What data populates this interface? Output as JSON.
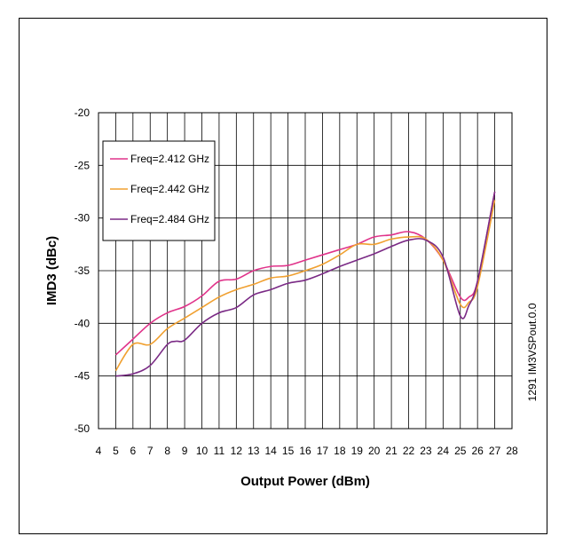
{
  "chart_data": {
    "type": "line",
    "title": "",
    "xlabel": "Output Power (dBm)",
    "ylabel": "IMD3 (dBc)",
    "side_note": "1291 IM3VSPout.0.0",
    "xlim": [
      4,
      28
    ],
    "ylim": [
      -50,
      -20
    ],
    "x_ticks": [
      "4",
      "5",
      "6",
      "7",
      "8",
      "9",
      "10",
      "11",
      "12",
      "13",
      "14",
      "15",
      "16",
      "17",
      "18",
      "19",
      "20",
      "21",
      "22",
      "23",
      "24",
      "25",
      "26",
      "27",
      "28"
    ],
    "y_ticks": [
      "-20",
      "-25",
      "-30",
      "-35",
      "-40",
      "-45",
      "-50"
    ],
    "grid": "vertical lines every 1 dBm, horizontal lines every 5 dBc",
    "legend_position": "top-left",
    "series": [
      {
        "name": "Freq=2.412 GHz",
        "color": "#e0338a",
        "x": [
          5,
          6,
          7,
          8,
          9,
          10,
          11,
          12,
          13,
          14,
          15,
          16,
          17,
          18,
          19,
          20,
          21,
          22,
          23,
          24,
          25,
          25.5,
          26,
          27
        ],
        "y": [
          -43,
          -41.5,
          -40,
          -39,
          -38.4,
          -37.4,
          -36,
          -35.8,
          -35,
          -34.6,
          -34.5,
          -34,
          -33.5,
          -33,
          -32.5,
          -31.8,
          -31.6,
          -31.3,
          -32,
          -34,
          -37.5,
          -37.5,
          -36,
          -27.5
        ]
      },
      {
        "name": "Freq=2.442 GHz",
        "color": "#f0a030",
        "x": [
          5,
          6,
          7,
          8,
          9,
          10,
          11,
          12,
          13,
          14,
          15,
          16,
          17,
          18,
          19,
          20,
          21,
          22,
          23,
          24,
          25,
          25.5,
          26,
          27
        ],
        "y": [
          -44.5,
          -42,
          -42,
          -40.5,
          -39.5,
          -38.5,
          -37.5,
          -36.8,
          -36.3,
          -35.7,
          -35.5,
          -35,
          -34.4,
          -33.5,
          -32.5,
          -32.5,
          -32,
          -31.8,
          -32,
          -34,
          -38.2,
          -38,
          -36.5,
          -28.3
        ]
      },
      {
        "name": "Freq=2.484 GHz",
        "color": "#7a2a85",
        "x": [
          5,
          6,
          7,
          8,
          8.5,
          9,
          10,
          11,
          12,
          13,
          14,
          15,
          16,
          17,
          18,
          19,
          20,
          21,
          22,
          23,
          24,
          25,
          25.5,
          26,
          27
        ],
        "y": [
          -45,
          -44.8,
          -44,
          -42,
          -41.7,
          -41.6,
          -40,
          -39,
          -38.5,
          -37.3,
          -36.8,
          -36.2,
          -35.9,
          -35.3,
          -34.6,
          -34,
          -33.4,
          -32.7,
          -32.1,
          -32.1,
          -33.7,
          -39.3,
          -38.3,
          -36,
          -27.5
        ]
      }
    ]
  }
}
